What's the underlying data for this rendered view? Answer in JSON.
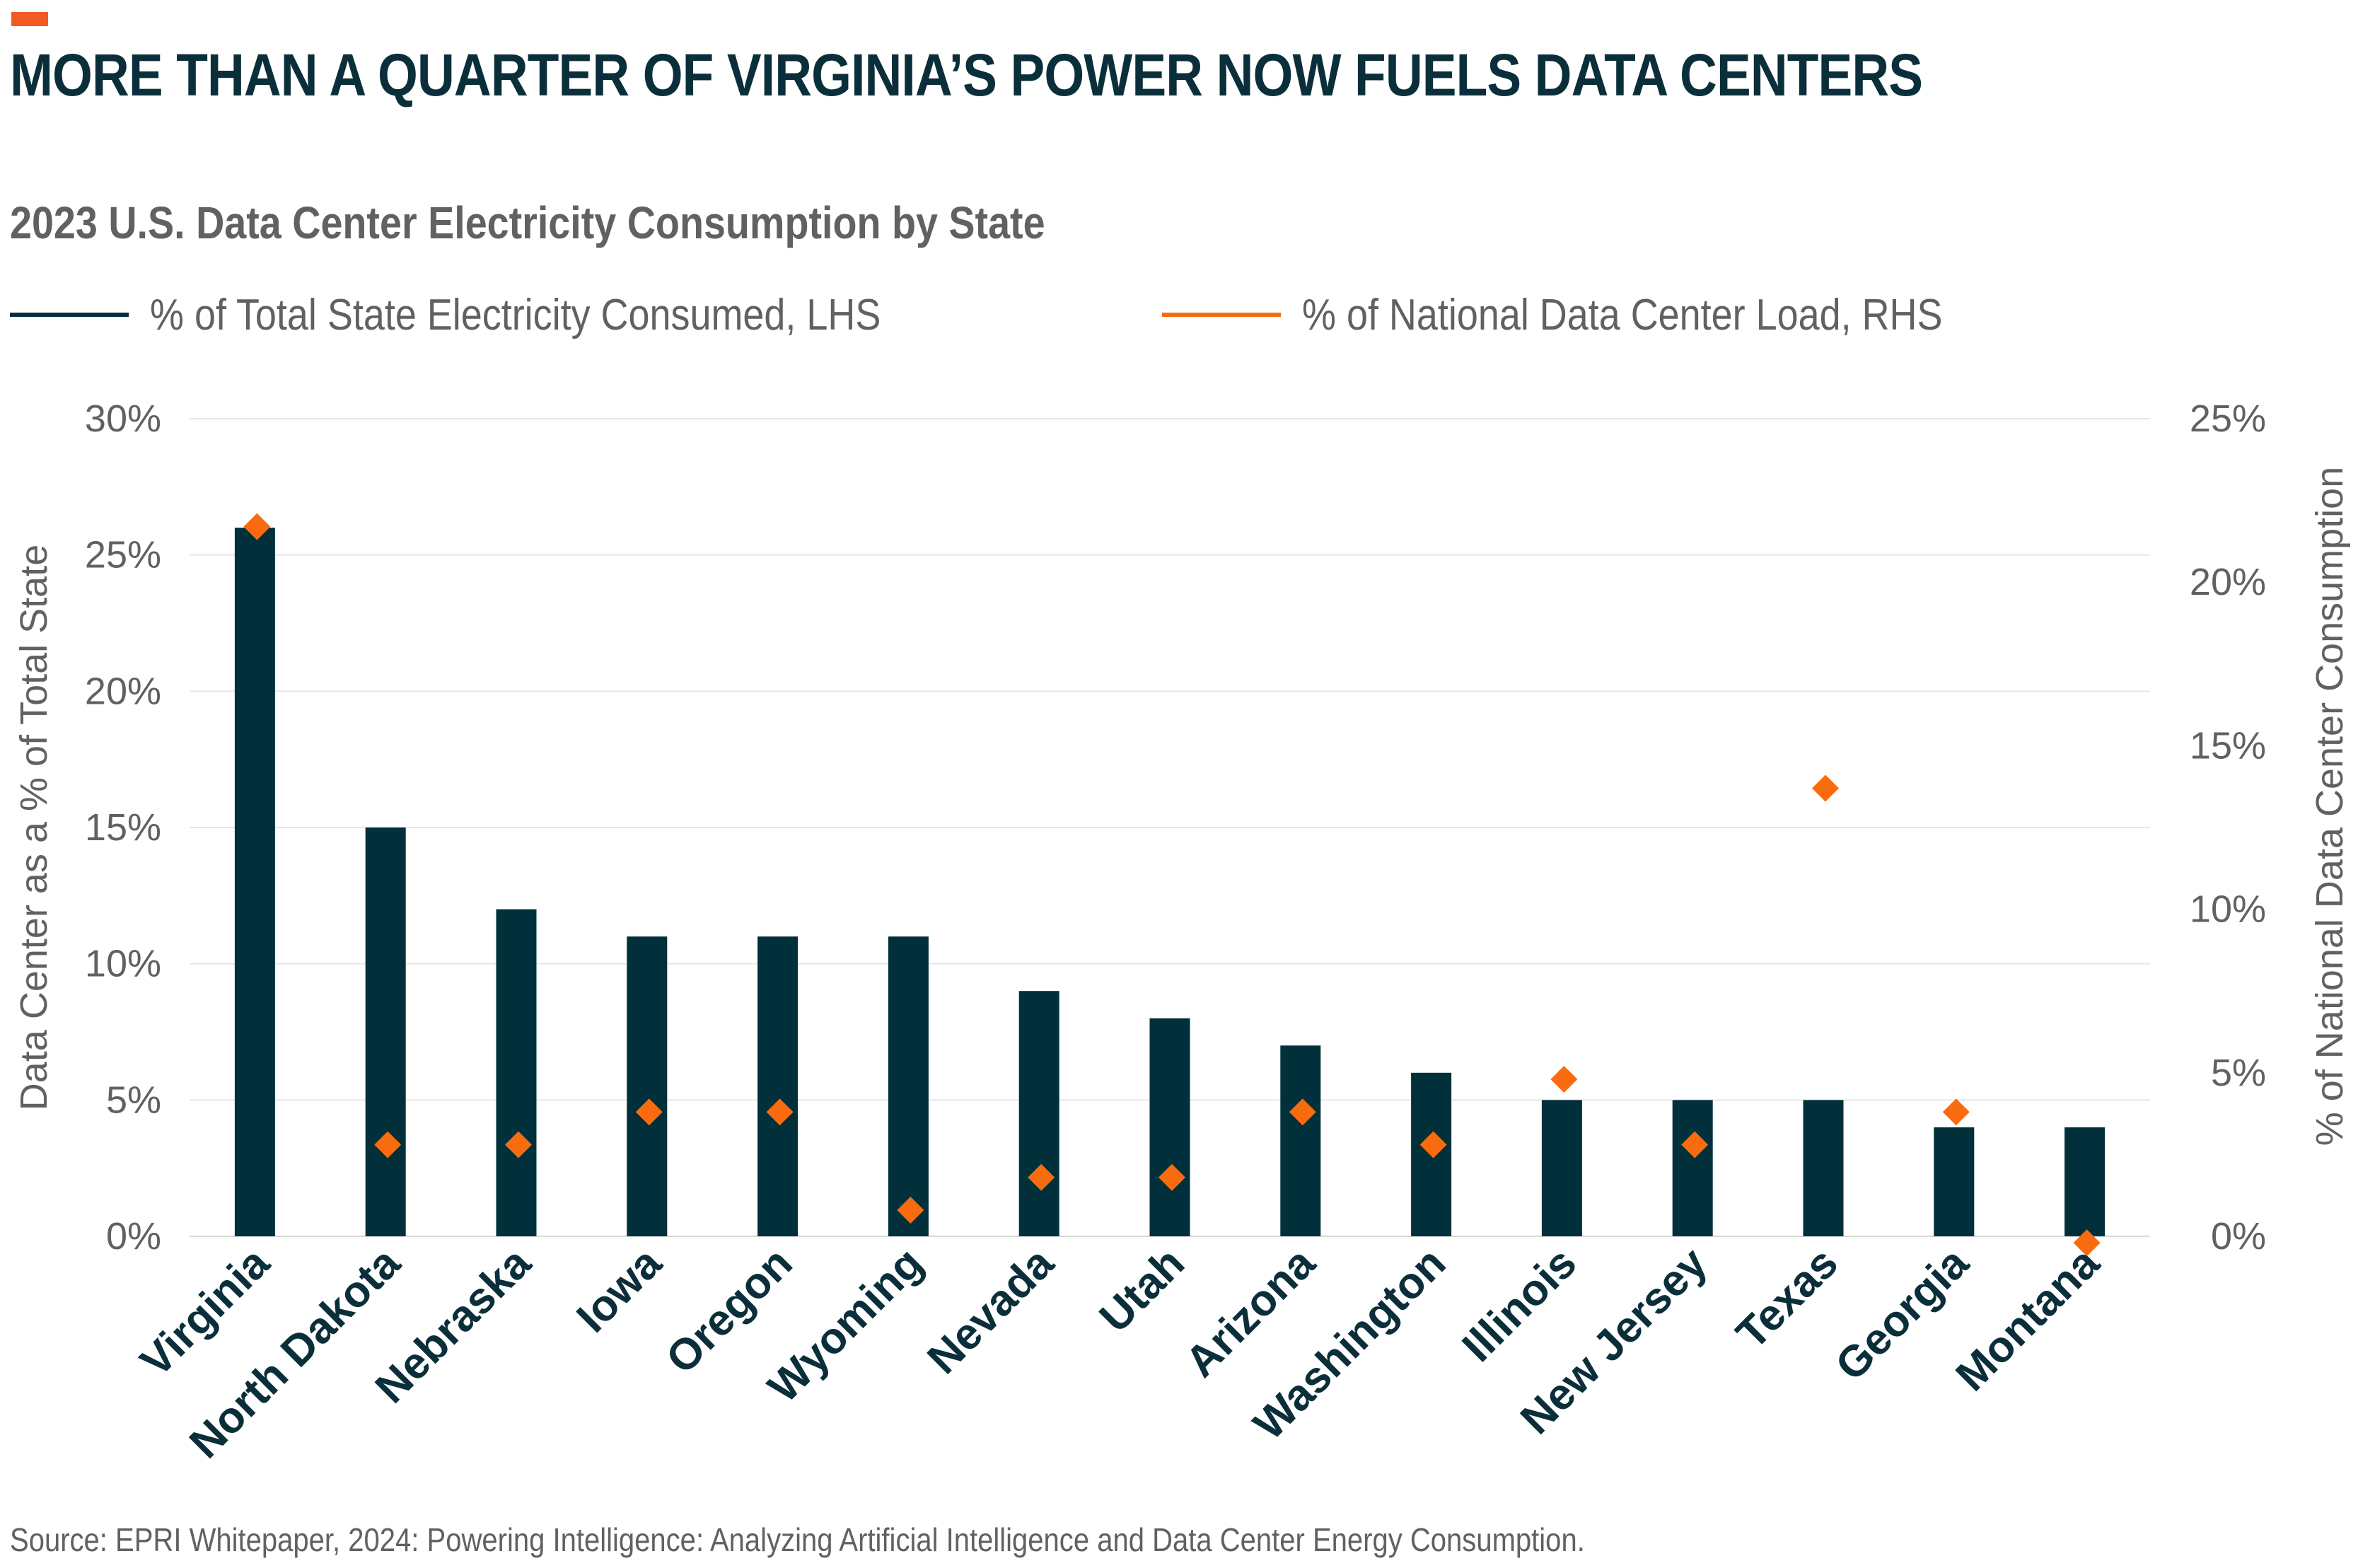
{
  "header": {
    "title": "MORE THAN A QUARTER OF VIRGINIA’S POWER NOW FUELS DATA CENTERS",
    "subtitle": "2023 U.S. Data Center Electricity Consumption by State"
  },
  "source": "Source: EPRI Whitepaper, 2024: Powering Intelligence: Analyzing Artificial Intelligence and Data Center Energy Consumption.",
  "colors": {
    "accent": "#f15a22",
    "bar": "#02303a",
    "marker": "#f96b0f",
    "text": "#5f6163",
    "title": "#0b2f3a",
    "grid": "#e6e6e6"
  },
  "chart_data": {
    "type": "bar",
    "categories": [
      "Virginia",
      "North Dakota",
      "Nebraska",
      "Iowa",
      "Oregon",
      "Wyoming",
      "Nevada",
      "Utah",
      "Arizona",
      "Washington",
      "Illinois",
      "New Jersey",
      "Texas",
      "Georgia",
      "Montana"
    ],
    "series": [
      {
        "name": "% of Total State Electricity Consumed, LHS",
        "type": "bar",
        "axis": "left",
        "values": [
          26,
          15,
          12,
          11,
          11,
          11,
          9,
          8,
          7,
          6,
          5,
          5,
          5,
          4,
          4
        ]
      },
      {
        "name": "% of National Data Center Load, RHS",
        "type": "scatter",
        "marker": "diamond",
        "axis": "right",
        "values": [
          21.7,
          2.8,
          2.8,
          3.8,
          3.8,
          0.8,
          1.8,
          1.8,
          3.8,
          2.8,
          4.8,
          2.8,
          13.7,
          3.8,
          -0.2
        ]
      }
    ],
    "ylabel": "Data Center as a % of Total State",
    "ylabel_right": "% of National Data Center Consumption",
    "ylim": [
      0,
      30
    ],
    "ylim_right": [
      0,
      25
    ],
    "yticks": [
      "0%",
      "5%",
      "10%",
      "15%",
      "20%",
      "25%",
      "30%"
    ],
    "yticks_right": [
      "0%",
      "5%",
      "10%",
      "15%",
      "20%",
      "25%"
    ],
    "grid": true,
    "legend_position": "top-left"
  }
}
